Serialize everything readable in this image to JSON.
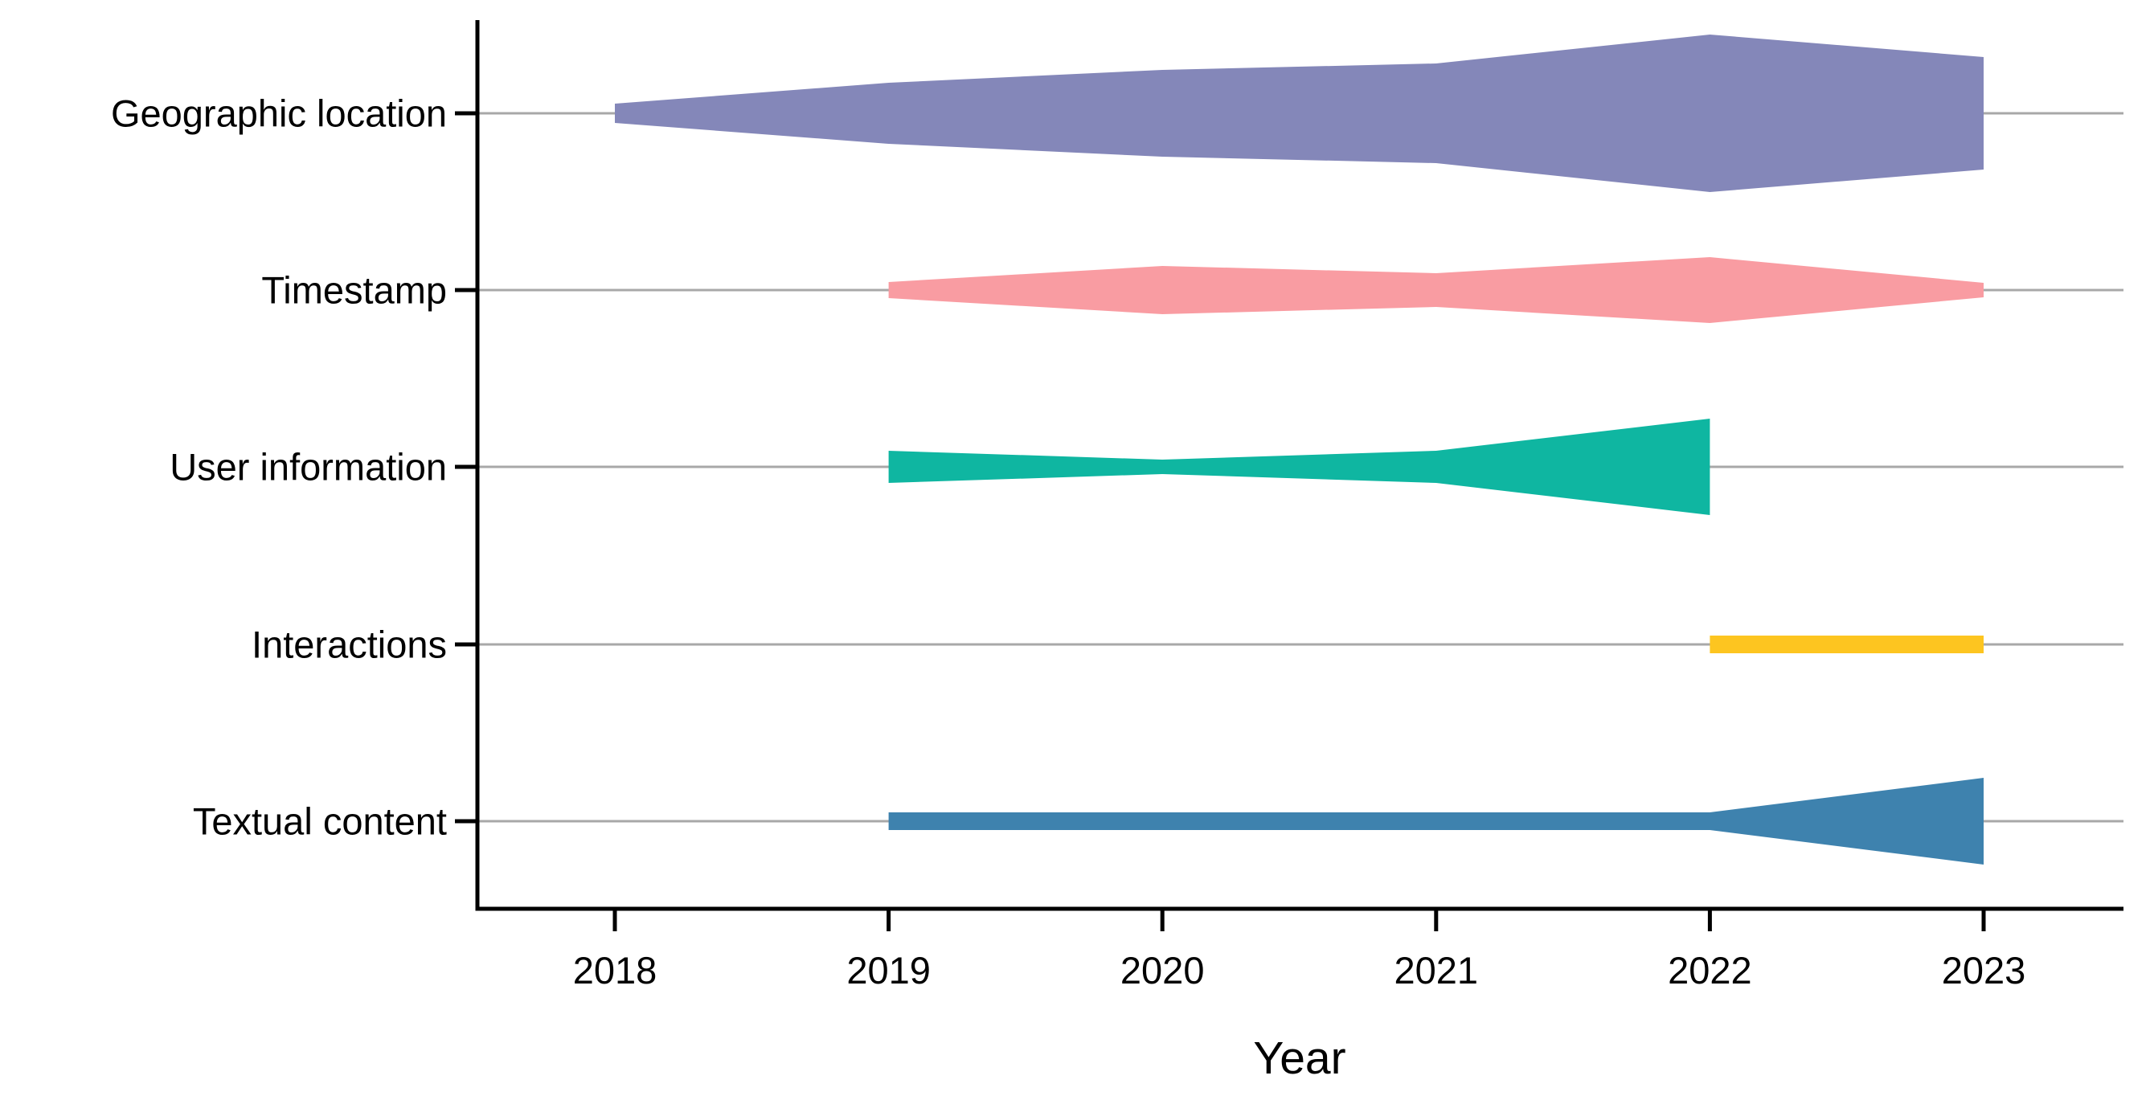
{
  "chart_data": {
    "type": "area",
    "subtype": "horizontal-stream-violin",
    "title": "",
    "xlabel": "Year",
    "ylabel": "",
    "x_tick_labels": [
      "2018",
      "2019",
      "2020",
      "2021",
      "2022",
      "2023"
    ],
    "x_tick_years": [
      2018,
      2019,
      2020,
      2021,
      2022,
      2023
    ],
    "x_range": [
      2018,
      2023
    ],
    "grid": "horizontal gray line per category, behind streams",
    "legend": "none",
    "gridline_color": "#A8A8A8",
    "axis_color": "#000000",
    "rows": [
      {
        "label": "Geographic location",
        "color": "#8487B9",
        "years": [
          2018,
          2019,
          2020,
          2021,
          2022,
          2023
        ],
        "half_thickness_px": [
          12,
          38,
          54,
          62,
          98,
          70
        ],
        "note": "starts 2018, peak at 2022, blunt vertical end at 2023"
      },
      {
        "label": "Timestamp",
        "color": "#F99CA2",
        "years": [
          2019,
          2020,
          2021,
          2022,
          2023
        ],
        "half_thickness_px": [
          10,
          30,
          21,
          41,
          9
        ],
        "note": "starts 2019, bulges 2020 and 2022, narrows to 2023"
      },
      {
        "label": "User information",
        "color": "#0FB6A1",
        "years": [
          2019,
          2020,
          2021,
          2022
        ],
        "half_thickness_px": [
          20,
          9,
          20,
          60
        ],
        "note": "starts 2019, pinch at 2020, flares to peak and ends at 2022"
      },
      {
        "label": "Interactions",
        "color": "#FDC520",
        "years": [
          2022,
          2023
        ],
        "half_thickness_px": [
          11,
          11
        ],
        "note": "constant thin bar from 2022 to 2023"
      },
      {
        "label": "Textual content",
        "color": "#3E82AE",
        "years": [
          2019,
          2020,
          2021,
          2022,
          2023
        ],
        "half_thickness_px": [
          11,
          11,
          11,
          11,
          54
        ],
        "note": "thin constant bar 2019-2022, triangular flare to blunt end at 2023"
      }
    ]
  }
}
